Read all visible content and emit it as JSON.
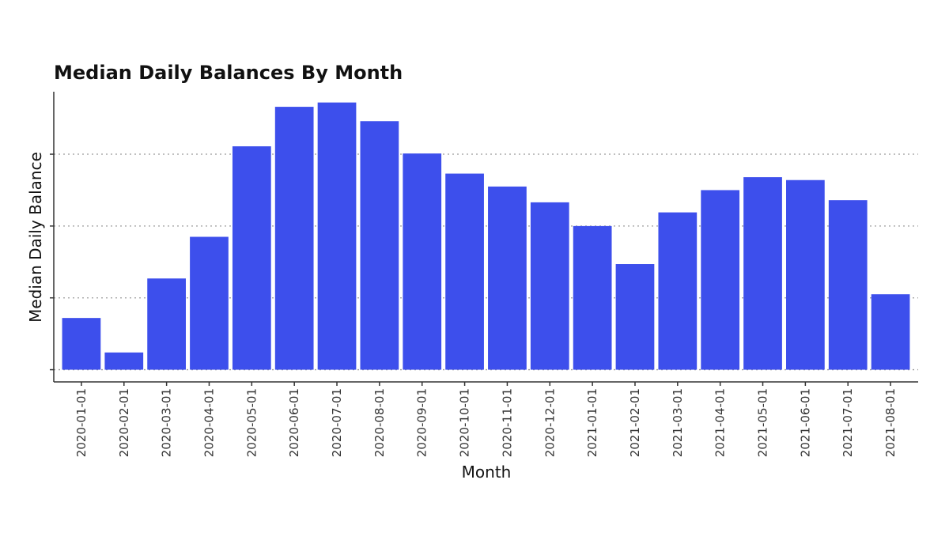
{
  "chart_data": {
    "type": "bar",
    "title": "Median Daily Balances By Month",
    "xlabel": "Month",
    "ylabel": "Median Daily Balance",
    "categories": [
      "2020-01-01",
      "2020-02-01",
      "2020-03-01",
      "2020-04-01",
      "2020-05-01",
      "2020-06-01",
      "2020-07-01",
      "2020-08-01",
      "2020-09-01",
      "2020-10-01",
      "2020-11-01",
      "2020-12-01",
      "2021-01-01",
      "2021-02-01",
      "2021-03-01",
      "2021-04-01",
      "2021-05-01",
      "2021-06-01",
      "2021-07-01",
      "2021-08-01"
    ],
    "values": [
      0.72,
      0.24,
      1.27,
      1.85,
      3.11,
      3.66,
      3.72,
      3.46,
      3.01,
      2.73,
      2.55,
      2.33,
      2.0,
      1.47,
      2.19,
      2.5,
      2.68,
      2.64,
      2.36,
      1.05
    ],
    "ylim": [
      -0.17,
      3.87
    ],
    "y_gridlines": [
      0,
      1,
      2,
      3
    ],
    "y_tick_labels_shown": false,
    "grid": "horizontal dotted",
    "colors": {
      "bar": "#3d4fec",
      "grid": "#9a9a9a",
      "axis": "#333333"
    }
  }
}
